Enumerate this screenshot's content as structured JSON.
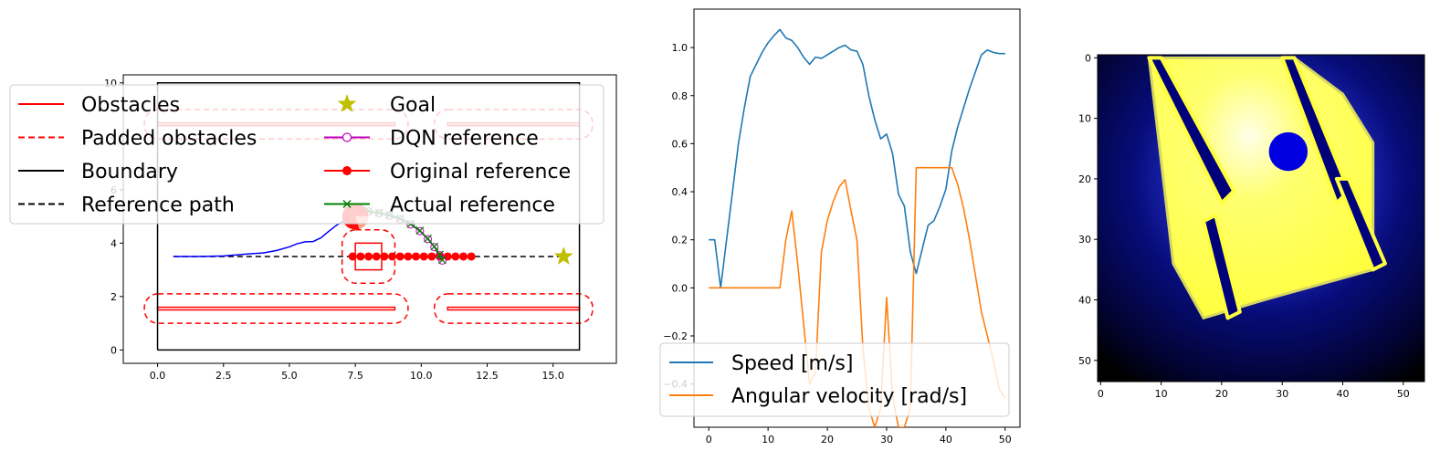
{
  "chart_data": [
    {
      "type": "line",
      "title": "",
      "xlabel": "",
      "ylabel": "",
      "xlim": [
        -1.3,
        17.4
      ],
      "ylim": [
        -0.5,
        10.3
      ],
      "xticks": [
        "0.0",
        "2.5",
        "5.0",
        "7.5",
        "10.0",
        "12.5",
        "15.0"
      ],
      "xtick_values": [
        0,
        2.5,
        5,
        7.5,
        10,
        12.5,
        15
      ],
      "yticks": [
        "0",
        "2",
        "4",
        "6",
        "8",
        "10"
      ],
      "ytick_values": [
        0,
        2,
        4,
        6,
        8,
        10
      ],
      "legend_placement": "upper-center",
      "legend": [
        {
          "label": "Obstacles",
          "style": "solid",
          "color": "#ff0000"
        },
        {
          "label": "Goal",
          "style": "star",
          "color": "#bfbf00"
        },
        {
          "label": "Padded obstacles",
          "style": "dashed",
          "color": "#ff0000"
        },
        {
          "label": "DQN reference",
          "style": "open-circle",
          "color": "#bf00bf"
        },
        {
          "label": "Boundary",
          "style": "solid",
          "color": "#000000"
        },
        {
          "label": "Original reference",
          "style": "filled-circle",
          "color": "#ff0000"
        },
        {
          "label": "Reference path",
          "style": "dashed",
          "color": "#000000"
        },
        {
          "label": "Actual reference",
          "style": "x",
          "color": "#008000"
        }
      ],
      "boundary": [
        [
          0,
          0
        ],
        [
          16,
          0
        ],
        [
          16,
          10
        ],
        [
          0,
          10
        ],
        [
          0,
          0
        ]
      ],
      "obstacles": [
        {
          "x": [
            0,
            9
          ],
          "y": [
            1.5,
            1.6
          ]
        },
        {
          "x": [
            11,
            16
          ],
          "y": [
            1.5,
            1.6
          ]
        },
        {
          "x": [
            0,
            9
          ],
          "y": [
            8.4,
            8.5
          ]
        },
        {
          "x": [
            11,
            16
          ],
          "y": [
            8.4,
            8.5
          ]
        },
        {
          "x": [
            7.5,
            8.5
          ],
          "y": [
            3.0,
            4.0
          ]
        }
      ],
      "padded_obstacles": [
        {
          "x": [
            -0.5,
            9.5
          ],
          "y": [
            1.0,
            2.1
          ]
        },
        {
          "x": [
            10.5,
            16.5
          ],
          "y": [
            1.0,
            2.1
          ]
        },
        {
          "x": [
            -0.5,
            9.5
          ],
          "y": [
            7.9,
            9.0
          ]
        },
        {
          "x": [
            10.5,
            16.5
          ],
          "y": [
            7.9,
            9.0
          ]
        },
        {
          "x": [
            7.0,
            9.0
          ],
          "y": [
            2.5,
            4.5
          ]
        }
      ],
      "reference_path": {
        "x": [
          0.6,
          15.4
        ],
        "y": [
          3.5,
          3.5
        ]
      },
      "goal": [
        15.4,
        3.5
      ],
      "robot": {
        "x": 7.5,
        "y": 5.0,
        "radius": 0.5
      },
      "trajectory": {
        "x": [
          0.6,
          1.5,
          2.5,
          3.0,
          3.5,
          4.0,
          4.5,
          5.0,
          5.3,
          5.6,
          5.9,
          6.2,
          6.5,
          6.8,
          7.1,
          7.3
        ],
        "y": [
          3.5,
          3.5,
          3.52,
          3.56,
          3.6,
          3.63,
          3.72,
          3.86,
          3.98,
          4.05,
          4.06,
          4.2,
          4.45,
          4.68,
          4.85,
          4.95
        ]
      },
      "original_reference": {
        "x": [
          7.4,
          7.7,
          8.0,
          8.3,
          8.6,
          8.9,
          9.2,
          9.5,
          9.8,
          10.1,
          10.4,
          10.7,
          11.0,
          11.3,
          11.6,
          11.9
        ],
        "y": [
          3.5,
          3.5,
          3.5,
          3.5,
          3.5,
          3.5,
          3.5,
          3.5,
          3.5,
          3.5,
          3.5,
          3.5,
          3.5,
          3.5,
          3.5,
          3.5
        ]
      },
      "dqn_reference": {
        "x": [
          7.6,
          8.0,
          8.4,
          8.8,
          9.2,
          9.6,
          9.95,
          10.25,
          10.5,
          10.7,
          10.8
        ],
        "y": [
          5.2,
          5.18,
          5.12,
          5.03,
          4.9,
          4.7,
          4.45,
          4.15,
          3.85,
          3.55,
          3.35
        ]
      },
      "actual_reference": {
        "x": [
          7.6,
          8.0,
          8.4,
          8.8,
          9.2,
          9.6,
          9.95,
          10.25,
          10.5,
          10.7,
          10.8
        ],
        "y": [
          5.22,
          5.2,
          5.14,
          5.05,
          4.92,
          4.72,
          4.47,
          4.17,
          3.87,
          3.57,
          3.37
        ]
      }
    },
    {
      "type": "line",
      "title": "",
      "xlabel": "",
      "ylabel": "",
      "xlim": [
        -2.5,
        52.5
      ],
      "ylim": [
        -0.58,
        1.16
      ],
      "xticks": [
        "0",
        "10",
        "20",
        "30",
        "40",
        "50"
      ],
      "xtick_values": [
        0,
        10,
        20,
        30,
        40,
        50
      ],
      "yticks": [
        "−0.4",
        "−0.2",
        "0.0",
        "0.2",
        "0.4",
        "0.6",
        "0.8",
        "1.0"
      ],
      "ytick_values": [
        -0.4,
        -0.2,
        0,
        0.2,
        0.4,
        0.6,
        0.8,
        1.0
      ],
      "legend_placement": "lower-center",
      "x": [
        0,
        1,
        2,
        3,
        4,
        5,
        6,
        7,
        8,
        9,
        10,
        11,
        12,
        13,
        14,
        15,
        16,
        17,
        18,
        19,
        20,
        21,
        22,
        23,
        24,
        25,
        26,
        27,
        28,
        29,
        30,
        31,
        32,
        33,
        34,
        35,
        36,
        37,
        38,
        39,
        40,
        41,
        42,
        43,
        44,
        45,
        46,
        47,
        48,
        49,
        50
      ],
      "series": [
        {
          "name": "Speed [m/s]",
          "color": "#1f77b4",
          "values": [
            0.2,
            0.2,
            0.0,
            0.2,
            0.4,
            0.6,
            0.75,
            0.88,
            0.93,
            0.98,
            1.02,
            1.05,
            1.075,
            1.04,
            1.03,
            1.0,
            0.96,
            0.93,
            0.96,
            0.955,
            0.97,
            0.985,
            1.0,
            1.01,
            0.99,
            0.985,
            0.93,
            0.8,
            0.7,
            0.62,
            0.64,
            0.56,
            0.39,
            0.34,
            0.15,
            0.06,
            0.16,
            0.26,
            0.28,
            0.34,
            0.41,
            0.57,
            0.67,
            0.75,
            0.83,
            0.9,
            0.97,
            0.99,
            0.98,
            0.975,
            0.975
          ]
        },
        {
          "name": "Angular velocity [rad/s]",
          "color": "#ff7f0e",
          "values": [
            0,
            0,
            0,
            0,
            0,
            0,
            0,
            0,
            0,
            0,
            0,
            0,
            0,
            0.2,
            0.32,
            0.1,
            -0.15,
            -0.4,
            -0.35,
            0.15,
            0.28,
            0.36,
            0.42,
            0.45,
            0.32,
            0.2,
            -0.25,
            -0.5,
            -0.58,
            -0.5,
            -0.04,
            -0.45,
            -0.58,
            -0.58,
            -0.5,
            0.5,
            0.5,
            0.5,
            0.5,
            0.5,
            0.5,
            0.5,
            0.43,
            0.33,
            0.2,
            0.05,
            -0.1,
            -0.2,
            -0.3,
            -0.42,
            -0.46
          ]
        }
      ]
    },
    {
      "type": "heatmap",
      "title": "",
      "xlabel": "",
      "ylabel": "",
      "xlim": [
        -0.5,
        53.5
      ],
      "ylim": [
        53.5,
        -0.5
      ],
      "xticks": [
        "0",
        "10",
        "20",
        "30",
        "40",
        "50"
      ],
      "xtick_values": [
        0,
        10,
        20,
        30,
        40,
        50
      ],
      "yticks": [
        "0",
        "10",
        "20",
        "30",
        "40",
        "50"
      ],
      "ytick_values": [
        0,
        10,
        20,
        30,
        40,
        50
      ],
      "colormap": "gist_stern-like blue to yellow",
      "free_region_polygon": [
        [
          13,
          0
        ],
        [
          32,
          0
        ],
        [
          40,
          6
        ],
        [
          45,
          14
        ],
        [
          45,
          35
        ],
        [
          27,
          40
        ],
        [
          17,
          43
        ],
        [
          12,
          34
        ],
        [
          8,
          0
        ]
      ],
      "obstacle_strips": [
        {
          "points": [
            [
              8,
              0
            ],
            [
              10,
              0
            ],
            [
              22,
              22
            ],
            [
              20,
              24
            ]
          ]
        },
        {
          "points": [
            [
              30,
              0
            ],
            [
              32,
              0
            ],
            [
              41,
              22
            ],
            [
              39,
              24
            ]
          ]
        },
        {
          "points": [
            [
              17,
              27
            ],
            [
              19,
              26
            ],
            [
              23,
              42
            ],
            [
              21,
              43
            ]
          ]
        },
        {
          "points": [
            [
              39,
              20
            ],
            [
              41,
              20
            ],
            [
              47,
              34
            ],
            [
              45,
              35
            ]
          ]
        }
      ],
      "blob": {
        "x": 31,
        "y": 15.5,
        "r": 3.2
      }
    }
  ]
}
